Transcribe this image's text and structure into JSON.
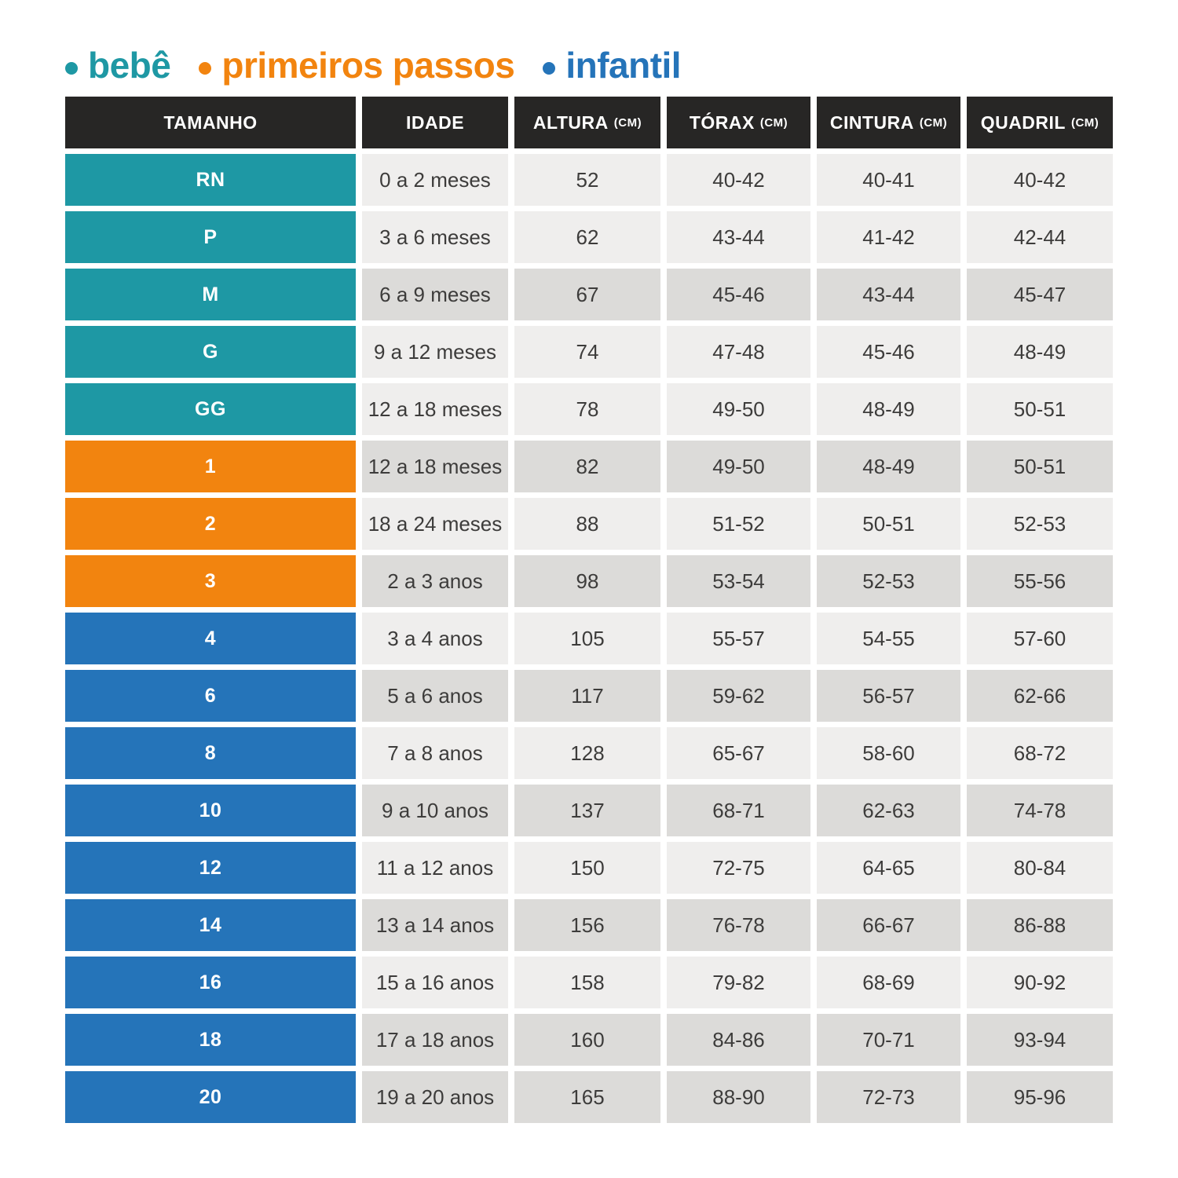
{
  "legend": {
    "items": [
      {
        "label": "bebê",
        "group": "bebe",
        "color": "#1e98a4"
      },
      {
        "label": "primeiros passos",
        "group": "primeiros_passos",
        "color": "#f2840f"
      },
      {
        "label": "infantil",
        "group": "infantil",
        "color": "#2574b9"
      }
    ]
  },
  "chart_data": {
    "type": "table",
    "columns": [
      {
        "label": "TAMANHO",
        "unit": ""
      },
      {
        "label": "IDADE",
        "unit": ""
      },
      {
        "label": "ALTURA",
        "unit": "(CM)"
      },
      {
        "label": "TÓRAX",
        "unit": "(CM)"
      },
      {
        "label": "CINTURA",
        "unit": "(CM)"
      },
      {
        "label": "QUADRIL",
        "unit": "(CM)"
      }
    ],
    "rows": [
      {
        "size": "RN",
        "group": "bebe",
        "shaded": false,
        "idade": "0 a 2 meses",
        "altura": "52",
        "torax": "40-42",
        "cintura": "40-41",
        "quadril": "40-42"
      },
      {
        "size": "P",
        "group": "bebe",
        "shaded": false,
        "idade": "3 a 6 meses",
        "altura": "62",
        "torax": "43-44",
        "cintura": "41-42",
        "quadril": "42-44"
      },
      {
        "size": "M",
        "group": "bebe",
        "shaded": true,
        "idade": "6 a 9 meses",
        "altura": "67",
        "torax": "45-46",
        "cintura": "43-44",
        "quadril": "45-47"
      },
      {
        "size": "G",
        "group": "bebe",
        "shaded": false,
        "idade": "9 a 12 meses",
        "altura": "74",
        "torax": "47-48",
        "cintura": "45-46",
        "quadril": "48-49"
      },
      {
        "size": "GG",
        "group": "bebe",
        "shaded": false,
        "idade": "12 a 18 meses",
        "altura": "78",
        "torax": "49-50",
        "cintura": "48-49",
        "quadril": "50-51"
      },
      {
        "size": "1",
        "group": "primeiros_passos",
        "shaded": true,
        "idade": "12 a 18 meses",
        "altura": "82",
        "torax": "49-50",
        "cintura": "48-49",
        "quadril": "50-51"
      },
      {
        "size": "2",
        "group": "primeiros_passos",
        "shaded": false,
        "idade": "18 a 24 meses",
        "altura": "88",
        "torax": "51-52",
        "cintura": "50-51",
        "quadril": "52-53"
      },
      {
        "size": "3",
        "group": "primeiros_passos",
        "shaded": true,
        "idade": "2 a 3 anos",
        "altura": "98",
        "torax": "53-54",
        "cintura": "52-53",
        "quadril": "55-56"
      },
      {
        "size": "4",
        "group": "infantil",
        "shaded": false,
        "idade": "3 a 4 anos",
        "altura": "105",
        "torax": "55-57",
        "cintura": "54-55",
        "quadril": "57-60"
      },
      {
        "size": "6",
        "group": "infantil",
        "shaded": true,
        "idade": "5 a 6 anos",
        "altura": "117",
        "torax": "59-62",
        "cintura": "56-57",
        "quadril": "62-66"
      },
      {
        "size": "8",
        "group": "infantil",
        "shaded": false,
        "idade": "7 a 8 anos",
        "altura": "128",
        "torax": "65-67",
        "cintura": "58-60",
        "quadril": "68-72"
      },
      {
        "size": "10",
        "group": "infantil",
        "shaded": true,
        "idade": "9 a 10 anos",
        "altura": "137",
        "torax": "68-71",
        "cintura": "62-63",
        "quadril": "74-78"
      },
      {
        "size": "12",
        "group": "infantil",
        "shaded": false,
        "idade": "11 a 12 anos",
        "altura": "150",
        "torax": "72-75",
        "cintura": "64-65",
        "quadril": "80-84"
      },
      {
        "size": "14",
        "group": "infantil",
        "shaded": true,
        "idade": "13 a 14 anos",
        "altura": "156",
        "torax": "76-78",
        "cintura": "66-67",
        "quadril": "86-88"
      },
      {
        "size": "16",
        "group": "infantil",
        "shaded": false,
        "idade": "15 a 16 anos",
        "altura": "158",
        "torax": "79-82",
        "cintura": "68-69",
        "quadril": "90-92"
      },
      {
        "size": "18",
        "group": "infantil",
        "shaded": true,
        "idade": "17 a 18 anos",
        "altura": "160",
        "torax": "84-86",
        "cintura": "70-71",
        "quadril": "93-94"
      },
      {
        "size": "20",
        "group": "infantil",
        "shaded": true,
        "idade": "19 a 20 anos",
        "altura": "165",
        "torax": "88-90",
        "cintura": "72-73",
        "quadril": "95-96"
      }
    ]
  },
  "colors": {
    "bebe": "#1e98a4",
    "primeiros_passos": "#f2840f",
    "infantil": "#2574b9",
    "header_bg": "#272625",
    "row_light": "#efeeed",
    "row_dark": "#dcdbd9",
    "cell_text": "#3d3c3b"
  }
}
